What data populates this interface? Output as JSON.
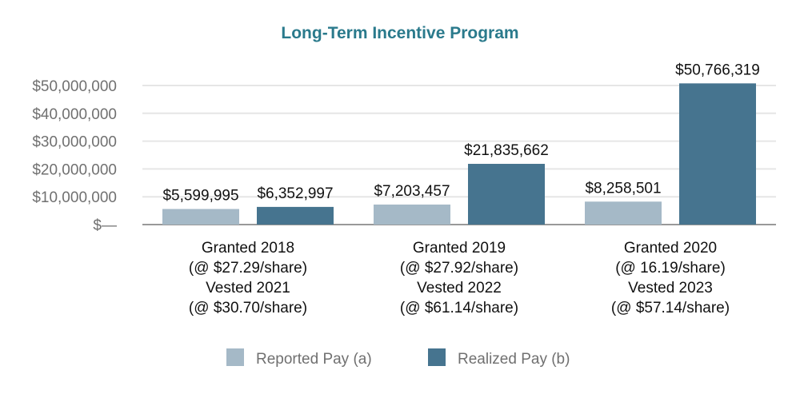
{
  "chart_data": {
    "type": "bar",
    "title": "Long-Term Incentive Program",
    "ylim": [
      0,
      50000000
    ],
    "yticks": [
      0,
      10000000,
      20000000,
      30000000,
      40000000,
      50000000
    ],
    "ytick_labels": [
      "$—",
      "$10,000,000",
      "$20,000,000",
      "$30,000,000",
      "$40,000,000",
      "$50,000,000"
    ],
    "categories": [
      [
        "Granted 2018",
        "(@ $27.29/share)",
        "Vested 2021",
        "(@ $30.70/share)"
      ],
      [
        "Granted 2019",
        "(@ $27.92/share)",
        "Vested 2022",
        "(@ $61.14/share)"
      ],
      [
        "Granted 2020",
        "(@ 16.19/share)",
        "Vested 2023",
        "(@ $57.14/share)"
      ]
    ],
    "series": [
      {
        "name": "Reported Pay (a)",
        "color": "#a5b9c7",
        "values": [
          5599995,
          7203457,
          8258501
        ],
        "labels": [
          "$5,599,995",
          "$7,203,457",
          "$8,258,501"
        ]
      },
      {
        "name": "Realized Pay (b)",
        "color": "#46748f",
        "values": [
          6352997,
          21835662,
          50766319
        ],
        "labels": [
          "$6,352,997",
          "$21,835,662",
          "$50,766,319"
        ]
      }
    ],
    "grid": true,
    "legend_position": "bottom-center"
  },
  "colors": {
    "title": "#2a7a8c",
    "grid": "#e6e6e6",
    "axis": "#999999"
  }
}
